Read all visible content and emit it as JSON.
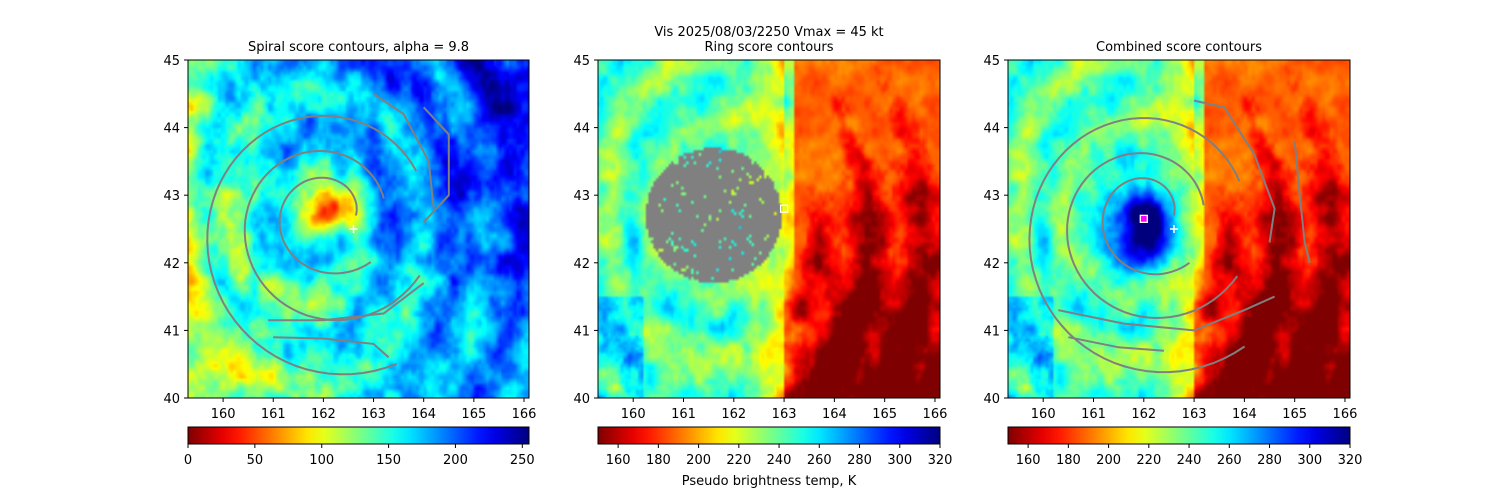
{
  "figure": {
    "suptitle_line1": "Vis  2025/08/03/2250    Vmax = 45 kt",
    "colorbar_label": "Pseudo brightness temp, K"
  },
  "colors": {
    "contour": "#808080",
    "masked_region": "#808080",
    "marker": "#ffffff",
    "center_marker": "#ff00ff"
  },
  "chart_data": [
    {
      "type": "heatmap",
      "title": "Spiral score contours, alpha =  9.8",
      "xlabel": "",
      "ylabel": "",
      "xlim": [
        159.3,
        166.1
      ],
      "ylim": [
        40,
        45
      ],
      "xticks": [
        160,
        161,
        162,
        163,
        164,
        165,
        166
      ],
      "yticks": [
        40,
        41,
        42,
        43,
        44,
        45
      ],
      "colormap": "jet_reversed",
      "colorbar": {
        "range": [
          0,
          255
        ],
        "ticks": [
          0,
          50,
          100,
          150,
          200,
          250
        ]
      },
      "contours": "spiral",
      "markers": [
        {
          "symbol": "+",
          "lon": 162.6,
          "lat": 42.5
        }
      ]
    },
    {
      "type": "heatmap",
      "title": "Ring score contours",
      "xlabel": "",
      "ylabel": "",
      "xlim": [
        159.3,
        166.1
      ],
      "ylim": [
        40,
        45
      ],
      "xticks": [
        160,
        161,
        162,
        163,
        164,
        165,
        166
      ],
      "yticks": [
        40,
        41,
        42,
        43,
        44,
        45
      ],
      "colormap": "jet_reversed",
      "colorbar": {
        "range": [
          150,
          320
        ],
        "ticks": [
          160,
          180,
          200,
          220,
          240,
          260,
          280,
          300,
          320
        ]
      },
      "masked_disk": {
        "lon": 161.6,
        "lat": 42.7,
        "radius_lon": 1.35,
        "radius_lat": 1.0
      },
      "markers": [
        {
          "symbol": "square",
          "lon": 163.0,
          "lat": 42.8
        }
      ]
    },
    {
      "type": "heatmap",
      "title": "Combined score contours",
      "xlabel": "",
      "ylabel": "",
      "xlim": [
        159.3,
        166.1
      ],
      "ylim": [
        40,
        45
      ],
      "xticks": [
        160,
        161,
        162,
        163,
        164,
        165,
        166
      ],
      "yticks": [
        40,
        41,
        42,
        43,
        44,
        45
      ],
      "colormap": "jet_reversed",
      "colorbar": {
        "range": [
          150,
          320
        ],
        "ticks": [
          160,
          180,
          200,
          220,
          240,
          260,
          280,
          300,
          320
        ]
      },
      "contours": "combined",
      "markers": [
        {
          "symbol": "+",
          "lon": 162.6,
          "lat": 42.5
        },
        {
          "symbol": "square-center",
          "lon": 162.0,
          "lat": 42.65
        }
      ]
    }
  ]
}
